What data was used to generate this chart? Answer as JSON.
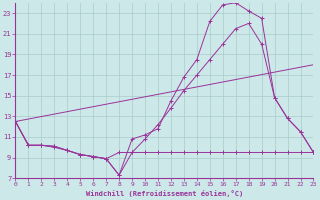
{
  "background_color": "#cce8e8",
  "grid_color": "#aacccc",
  "line_color": "#993399",
  "xlim": [
    0,
    23
  ],
  "ylim": [
    7,
    24
  ],
  "xticks": [
    0,
    1,
    2,
    3,
    4,
    5,
    6,
    7,
    8,
    9,
    10,
    11,
    12,
    13,
    14,
    15,
    16,
    17,
    18,
    19,
    20,
    21,
    22,
    23
  ],
  "yticks": [
    7,
    9,
    11,
    13,
    15,
    17,
    19,
    21,
    23
  ],
  "xlabel": "Windchill (Refroidissement éolien,°C)",
  "line1_x": [
    0,
    1,
    2,
    3,
    4,
    5,
    6,
    7,
    8,
    9,
    10,
    11,
    12,
    13,
    14,
    15,
    16,
    17,
    18,
    19,
    20,
    21,
    22,
    23
  ],
  "line1_y": [
    12.5,
    10.2,
    10.2,
    10.1,
    9.7,
    9.3,
    9.1,
    8.9,
    7.3,
    10.8,
    11.2,
    11.8,
    14.5,
    16.8,
    18.5,
    22.2,
    23.8,
    24.0,
    23.2,
    22.5,
    14.8,
    12.8,
    11.5,
    9.5
  ],
  "line2_x": [
    0,
    1,
    2,
    3,
    4,
    5,
    6,
    7,
    8,
    9,
    10,
    11,
    12,
    13,
    14,
    15,
    16,
    17,
    18,
    19,
    20,
    21,
    22,
    23
  ],
  "line2_y": [
    12.5,
    10.2,
    10.2,
    10.1,
    9.7,
    9.3,
    9.1,
    8.9,
    9.5,
    9.5,
    9.5,
    9.5,
    9.5,
    9.5,
    9.5,
    9.5,
    9.5,
    9.5,
    9.5,
    9.5,
    9.5,
    9.5,
    9.5,
    9.5
  ],
  "line3_x": [
    0,
    1,
    2,
    3,
    4,
    5,
    6,
    7,
    8,
    9,
    10,
    11,
    12,
    13,
    14,
    15,
    16,
    17,
    18,
    19,
    20,
    21,
    22,
    23
  ],
  "line3_y": [
    12.5,
    10.2,
    10.2,
    10.0,
    9.7,
    9.3,
    9.1,
    8.9,
    7.3,
    9.5,
    10.8,
    12.2,
    13.8,
    15.5,
    17.0,
    18.5,
    20.0,
    21.5,
    22.0,
    20.0,
    14.8,
    12.8,
    11.5,
    9.5
  ],
  "line4_x": [
    0,
    23
  ],
  "line4_y": [
    12.5,
    18.0
  ]
}
